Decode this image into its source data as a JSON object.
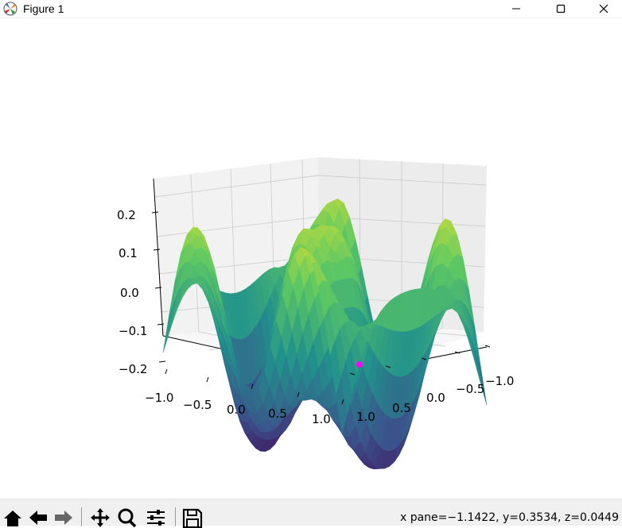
{
  "window": {
    "title": "Figure 1"
  },
  "toolbar": {
    "buttons": [
      "home-icon",
      "back-icon",
      "forward-icon",
      "pan-icon",
      "zoom-icon",
      "configure-icon",
      "save-icon"
    ],
    "status": "x pane=−1.1422, y=0.3534, z=0.0449"
  },
  "chart_data": {
    "type": "surface3d",
    "title": "",
    "xlabel": "",
    "ylabel": "",
    "zlabel": "",
    "x_ticks": [
      "−1.0",
      "−0.5",
      "0.0",
      "0.5",
      "1.0"
    ],
    "y_ticks": [
      "1.0",
      "0.5",
      "0.0",
      "−0.5",
      "−1.0"
    ],
    "z_ticks": [
      "0.2",
      "0.1",
      "0.0",
      "−0.1",
      "−0.2"
    ],
    "xlim": [
      -1,
      1
    ],
    "ylim": [
      -1,
      1
    ],
    "zlim": [
      -0.22,
      0.22
    ],
    "colormap": "viridis",
    "grid": true,
    "highlight_point": {
      "x": -1.1422,
      "y": 0.3534,
      "z": 0.0449,
      "color": "#ff00ff"
    }
  }
}
